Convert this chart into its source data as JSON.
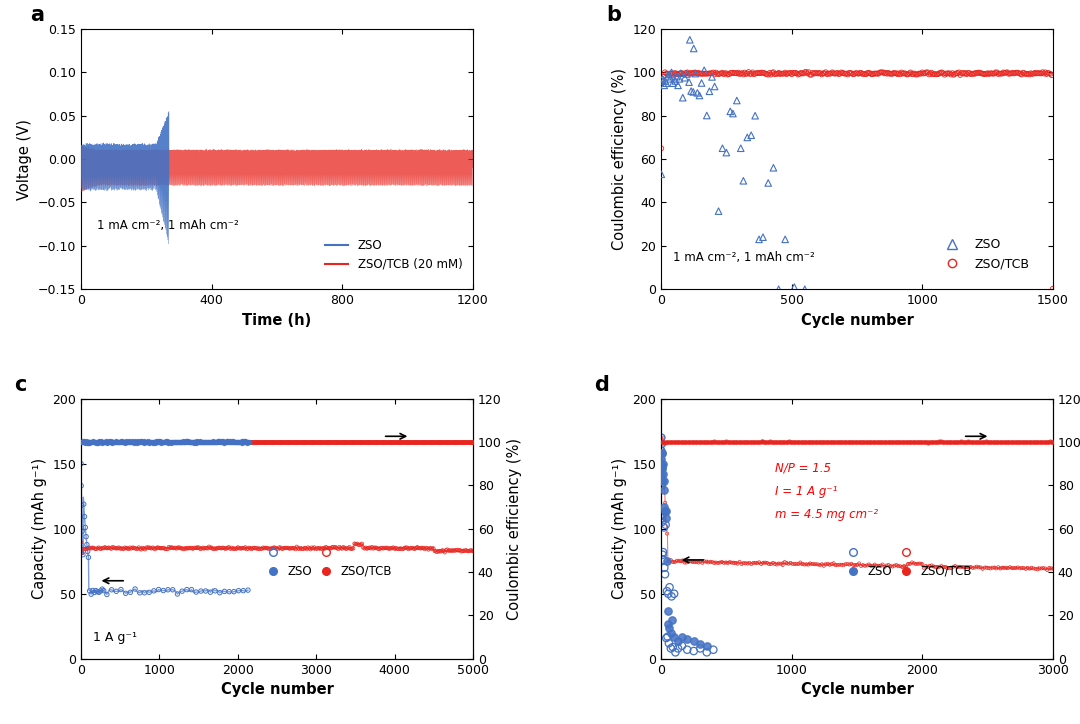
{
  "panel_a": {
    "label": "a",
    "xlabel": "Time (h)",
    "ylabel": "Voltage (V)",
    "xlim": [
      0,
      1200
    ],
    "ylim": [
      -0.15,
      0.15
    ],
    "yticks": [
      -0.15,
      -0.1,
      -0.05,
      0.0,
      0.05,
      0.1,
      0.15
    ],
    "xticks": [
      0,
      400,
      800,
      1200
    ],
    "zso_color": "#4472C4",
    "tcb_color": "#E8251F",
    "annotation": "1 mA cm⁻², 1 mAh cm⁻²",
    "legend_zso": "ZSO",
    "legend_tcb": "ZSO/TCB (20 mM)",
    "zso_end_time": 270,
    "tcb_end_time": 1200,
    "zso_amp": 0.032,
    "tcb_amp": 0.025
  },
  "panel_b": {
    "label": "b",
    "xlabel": "Cycle number",
    "ylabel": "Coulombic efficiency (%)",
    "xlim": [
      0,
      1500
    ],
    "ylim": [
      0,
      120
    ],
    "yticks": [
      0,
      20,
      40,
      60,
      80,
      100,
      120
    ],
    "xticks": [
      0,
      500,
      1000,
      1500
    ],
    "zso_color": "#4472C4",
    "tcb_color": "#E8251F",
    "annotation": "1 mA cm⁻², 1 mAh cm⁻²",
    "legend_zso": "ZSO",
    "legend_tcb": "ZSO/TCB"
  },
  "panel_c": {
    "label": "c",
    "xlabel": "Cycle number",
    "ylabel_left": "Capacity (mAh g⁻¹)",
    "ylabel_right": "Coulombic efficiency (%)",
    "xlim": [
      0,
      5000
    ],
    "ylim_left": [
      0,
      200
    ],
    "ylim_right": [
      0,
      120
    ],
    "yticks_left": [
      0,
      50,
      100,
      150,
      200
    ],
    "yticks_right": [
      0,
      20,
      40,
      60,
      80,
      100,
      120
    ],
    "xticks": [
      0,
      1000,
      2000,
      3000,
      4000,
      5000
    ],
    "zso_color": "#4472C4",
    "tcb_color": "#E8251F",
    "annotation": "1 A g⁻¹",
    "legend_zso": "ZSO",
    "legend_tcb": "ZSO/TCB"
  },
  "panel_d": {
    "label": "d",
    "xlabel": "Cycle number",
    "ylabel_left": "Capacity (mAh g⁻¹)",
    "ylabel_right": "Coulombic efficiency (%)",
    "xlim": [
      0,
      3000
    ],
    "ylim_left": [
      0,
      200
    ],
    "ylim_right": [
      0,
      120
    ],
    "yticks_left": [
      0,
      50,
      100,
      150,
      200
    ],
    "yticks_right": [
      0,
      20,
      40,
      60,
      80,
      100,
      120
    ],
    "xticks": [
      0,
      1000,
      2000,
      3000
    ],
    "zso_color": "#4472C4",
    "tcb_color": "#E8251F",
    "annotation_line1": "N/P = 1.5",
    "annotation_line2": "I = 1 A g⁻¹",
    "annotation_line3": "m = 4.5 mg cm⁻²",
    "legend_zso": "ZSO",
    "legend_tcb": "ZSO/TCB"
  },
  "figure_bg": "#FFFFFF",
  "axes_bg": "#FFFFFF"
}
